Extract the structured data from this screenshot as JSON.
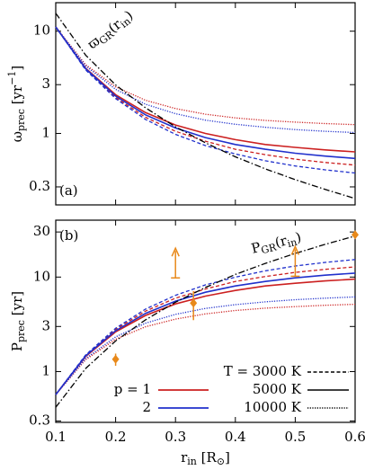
{
  "chart_data": [
    {
      "type": "line",
      "yscale": "log",
      "x": [
        0.1,
        0.15,
        0.2,
        0.25,
        0.3,
        0.35,
        0.4,
        0.45,
        0.5,
        0.55,
        0.6
      ],
      "xlim": [
        0.1,
        0.6
      ],
      "xticks": [
        0.1,
        0.2,
        0.3,
        0.4,
        0.5,
        0.6
      ],
      "show_xticklabels": false,
      "ylim": [
        0.2,
        19
      ],
      "yticks": [
        0.3,
        1,
        3,
        10
      ],
      "ylabel": [
        {
          "text": "ω"
        },
        {
          "text": "prec",
          "sub": true
        },
        {
          "text": " [yr"
        },
        {
          "text": "−1",
          "sup": true
        },
        {
          "text": "]"
        }
      ],
      "panel_label": "(a)",
      "annotation": [
        {
          "text": "ϖ"
        },
        {
          "text": "GR",
          "sub": true
        },
        {
          "text": "(r"
        },
        {
          "text": "in",
          "sub": true
        },
        {
          "text": ")"
        }
      ],
      "series": [
        {
          "color": "#cc2020",
          "dash": "dashed",
          "values": [
            11,
            4.23,
            2.25,
            1.44,
            1.05,
            0.84,
            0.7,
            0.62,
            0.56,
            0.52,
            0.49
          ]
        },
        {
          "color": "#cc2020",
          "dash": "solid",
          "values": [
            11,
            4.34,
            2.39,
            1.6,
            1.21,
            1.0,
            0.87,
            0.78,
            0.73,
            0.69,
            0.66
          ]
        },
        {
          "color": "#cc2020",
          "dash": "dotted",
          "values": [
            11,
            4.7,
            2.86,
            2.11,
            1.75,
            1.54,
            1.42,
            1.34,
            1.29,
            1.25,
            1.22
          ]
        },
        {
          "color": "#2030cc",
          "dash": "dashed",
          "values": [
            11,
            4.18,
            2.19,
            1.37,
            0.98,
            0.76,
            0.63,
            0.54,
            0.48,
            0.44,
            0.41
          ]
        },
        {
          "color": "#2030cc",
          "dash": "solid",
          "values": [
            11,
            4.28,
            2.32,
            1.52,
            1.13,
            0.91,
            0.78,
            0.7,
            0.64,
            0.6,
            0.57
          ]
        },
        {
          "color": "#2030cc",
          "dash": "dotted",
          "values": [
            11,
            4.57,
            2.7,
            1.93,
            1.56,
            1.35,
            1.23,
            1.15,
            1.09,
            1.05,
            1.02
          ]
        },
        {
          "color": "#000000",
          "dash": "dashdot",
          "values": [
            15,
            5.83,
            2.98,
            1.78,
            1.16,
            0.81,
            0.59,
            0.45,
            0.353,
            0.283,
            0.231
          ]
        }
      ]
    },
    {
      "type": "line",
      "yscale": "log",
      "x": [
        0.1,
        0.15,
        0.2,
        0.25,
        0.3,
        0.35,
        0.4,
        0.45,
        0.5,
        0.55,
        0.6
      ],
      "xlim": [
        0.1,
        0.6
      ],
      "xticks": [
        0.1,
        0.2,
        0.3,
        0.4,
        0.5,
        0.6
      ],
      "show_xticklabels": true,
      "xlabel": [
        {
          "text": "r"
        },
        {
          "text": "in",
          "sub": true
        },
        {
          "text": " [R"
        },
        {
          "text": "⊙",
          "sub": true
        },
        {
          "text": "]"
        }
      ],
      "ylim": [
        0.29,
        40
      ],
      "yticks": [
        0.3,
        1,
        3,
        10,
        30
      ],
      "ylabel": [
        {
          "text": "P"
        },
        {
          "text": "prec",
          "sub": true
        },
        {
          "text": " [yr]"
        }
      ],
      "panel_label": "(b)",
      "annotation": [
        {
          "text": "P"
        },
        {
          "text": "GR",
          "sub": true
        },
        {
          "text": "(r"
        },
        {
          "text": "in",
          "sub": true
        },
        {
          "text": ")"
        }
      ],
      "series": [
        {
          "color": "#cc2020",
          "dash": "dashed",
          "values": [
            0.571,
            1.485,
            2.792,
            4.363,
            5.984,
            7.48,
            8.976,
            10.13,
            11.22,
            12.08,
            12.82
          ]
        },
        {
          "color": "#cc2020",
          "dash": "solid",
          "values": [
            0.571,
            1.448,
            2.629,
            3.927,
            5.193,
            6.283,
            7.222,
            8.055,
            8.607,
            9.106,
            9.52
          ]
        },
        {
          "color": "#cc2020",
          "dash": "dotted",
          "values": [
            0.571,
            1.337,
            2.197,
            2.978,
            3.59,
            4.08,
            4.425,
            4.689,
            4.871,
            5.026,
            5.15
          ]
        },
        {
          "color": "#2030cc",
          "dash": "dashed",
          "values": [
            0.571,
            1.503,
            2.869,
            4.586,
            6.411,
            8.267,
            9.973,
            11.64,
            13.09,
            14.28,
            15.32
          ]
        },
        {
          "color": "#2030cc",
          "dash": "solid",
          "values": [
            0.571,
            1.468,
            2.708,
            4.134,
            5.56,
            6.905,
            8.055,
            8.976,
            9.817,
            10.47,
            11.02
          ]
        },
        {
          "color": "#2030cc",
          "dash": "dotted",
          "values": [
            0.571,
            1.375,
            2.327,
            3.255,
            4.028,
            4.654,
            5.108,
            5.464,
            5.764,
            5.984,
            6.16
          ]
        },
        {
          "color": "#000000",
          "dash": "dashdot",
          "values": [
            0.419,
            1.078,
            2.108,
            3.53,
            5.416,
            7.757,
            10.65,
            13.96,
            17.8,
            22.2,
            27.2
          ]
        }
      ],
      "points": {
        "color": "#e8891a",
        "x": [
          0.2,
          0.33,
          0.6
        ],
        "values": [
          1.35,
          5.3,
          28
        ],
        "errors": [
          0.2,
          1.8,
          2
        ]
      },
      "lower_limits": {
        "color": "#e8891a",
        "x": [
          0.3,
          0.5
        ],
        "values": [
          9.8,
          10.2
        ]
      },
      "legend": {
        "position": "lower right",
        "colors": [
          {
            "label": "p = 1",
            "color": "#cc2020"
          },
          {
            "label": "2",
            "color": "#2030cc"
          }
        ],
        "styles": [
          {
            "label": "T = 3000 K",
            "dash": "dashed"
          },
          {
            "label": "5000 K",
            "dash": "solid"
          },
          {
            "label": "10000 K",
            "dash": "dotted"
          }
        ]
      }
    }
  ]
}
